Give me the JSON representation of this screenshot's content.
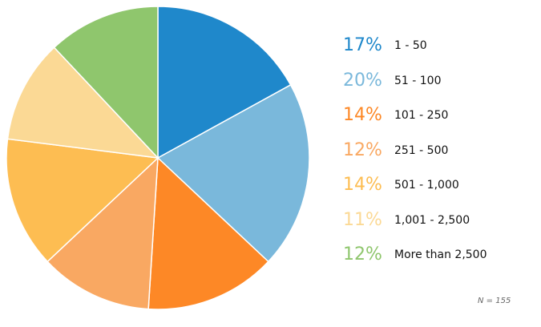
{
  "chart_data": {
    "type": "pie",
    "title": "",
    "note": "N = 155",
    "legend_position": "right",
    "slices": [
      {
        "label": "1 - 50",
        "percent_label": "17%",
        "value": 17,
        "color": "#1f88cb"
      },
      {
        "label": "51 - 100",
        "percent_label": "20%",
        "value": 20,
        "color": "#7ab8db"
      },
      {
        "label": "101 - 250",
        "percent_label": "14%",
        "value": 14,
        "color": "#fd8826"
      },
      {
        "label": "251 - 500",
        "percent_label": "12%",
        "value": 12,
        "color": "#f9a862"
      },
      {
        "label": "501 - 1,000",
        "percent_label": "14%",
        "value": 14,
        "color": "#fdbd52"
      },
      {
        "label": "1,001 - 2,500",
        "percent_label": "11%",
        "value": 11,
        "color": "#fbd995"
      },
      {
        "label": "More than 2,500",
        "percent_label": "12%",
        "value": 12,
        "color": "#8fc66d"
      }
    ]
  }
}
